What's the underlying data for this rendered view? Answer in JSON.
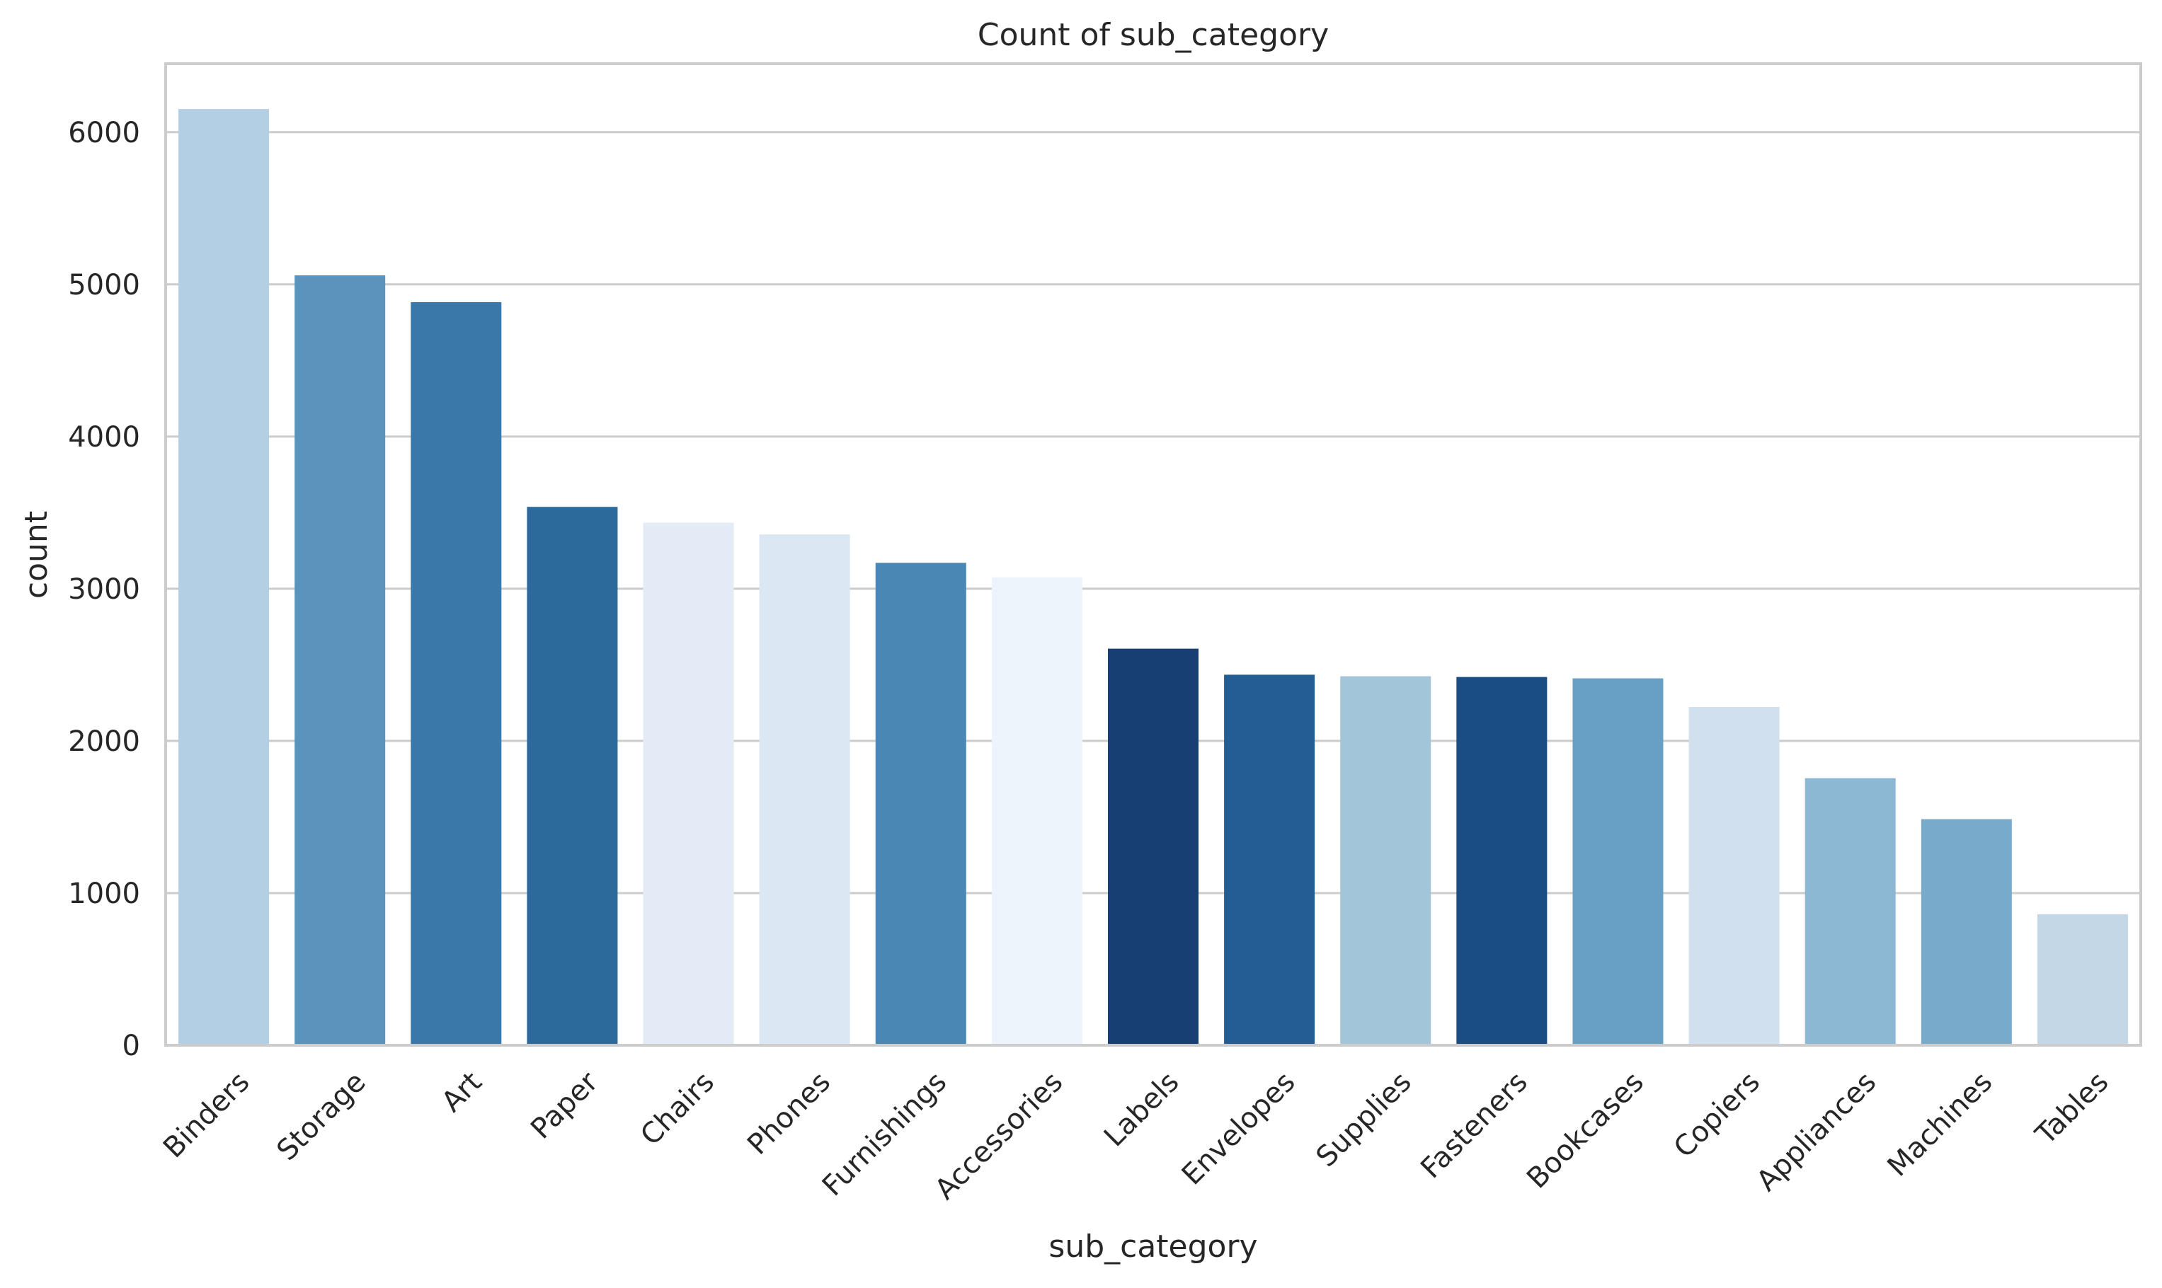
{
  "chart_data": {
    "type": "bar",
    "title": "Count of sub_category",
    "xlabel": "sub_category",
    "ylabel": "count",
    "ylim": [
      0,
      6450
    ],
    "yticks": [
      0,
      1000,
      2000,
      3000,
      4000,
      5000,
      6000
    ],
    "grid": "horizontal",
    "categories": [
      "Binders",
      "Storage",
      "Art",
      "Paper",
      "Chairs",
      "Phones",
      "Furnishings",
      "Accessories",
      "Labels",
      "Envelopes",
      "Supplies",
      "Fasteners",
      "Bookcases",
      "Copiers",
      "Appliances",
      "Machines",
      "Tables"
    ],
    "values": [
      6152,
      5059,
      4883,
      3538,
      3434,
      3357,
      3170,
      3075,
      2606,
      2435,
      2425,
      2420,
      2411,
      2223,
      1755,
      1486,
      861
    ],
    "colors": [
      "#b3cfe3",
      "#5a93bc",
      "#3a78aa",
      "#2d6a9c",
      "#e3ecf6",
      "#dbe7f3",
      "#4a87b5",
      "#eef4fb",
      "#173f73",
      "#235d93",
      "#a3c5da",
      "#1b4d85",
      "#67a0c4",
      "#d0e0ee",
      "#8db8d4",
      "#78abcb",
      "#c3d7e7"
    ]
  }
}
